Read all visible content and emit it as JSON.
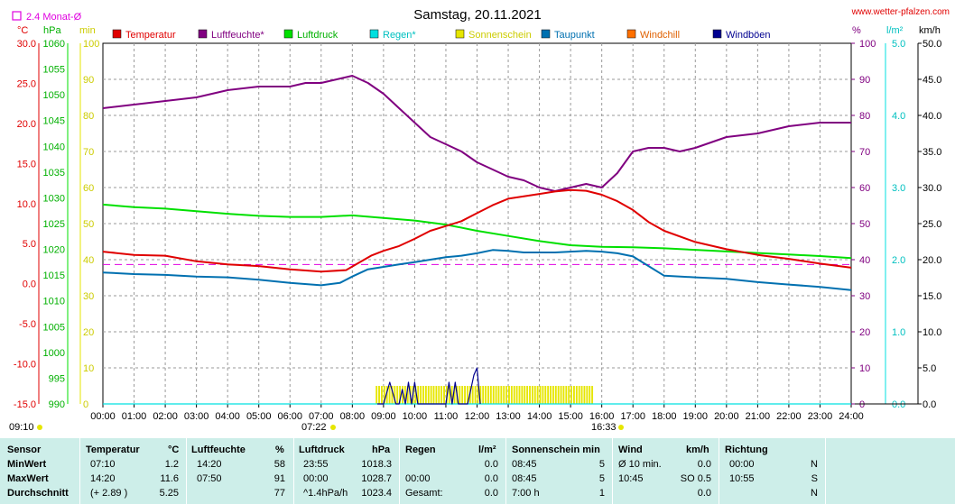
{
  "header": {
    "title": "Samstag, 20.11.2021",
    "site": "www.wetter-pfalzen.com",
    "avg_label": "2.4 Monat-Ø"
  },
  "units": {
    "temp": "°C",
    "hpa": "hPa",
    "min": "min",
    "pct": "%",
    "lm2": "l/m²",
    "kmh": "km/h"
  },
  "markers": {
    "left_time": "09:10",
    "sunrise": "07:22",
    "sunset": "16:33"
  },
  "colors": {
    "temperature": "#e00000",
    "humidity": "#800080",
    "pressure": "#00e000",
    "rain": "#00e0e0",
    "sunshine": "#e6e600",
    "dewpoint": "#0070b0",
    "windchill": "#ff7000",
    "gusts": "#000090",
    "average": "#e000e0",
    "table_bg": "#cdeee9"
  },
  "chart_data": {
    "type": "line",
    "title": "Samstag, 20.11.2021",
    "x_ticks": [
      "00:00",
      "01:00",
      "02:00",
      "03:00",
      "04:00",
      "05:00",
      "06:00",
      "07:00",
      "08:00",
      "09:00",
      "10:00",
      "11:00",
      "12:00",
      "13:00",
      "14:00",
      "15:00",
      "16:00",
      "17:00",
      "18:00",
      "19:00",
      "20:00",
      "21:00",
      "22:00",
      "23:00",
      "24:00"
    ],
    "xlim": [
      0,
      24
    ],
    "axes": {
      "temp": {
        "ylim": [
          -15,
          30
        ],
        "ticks": [
          "30.0",
          "25.0",
          "20.0",
          "15.0",
          "10.0",
          "5.0",
          "0.0",
          "-5.0",
          "-10.0",
          "-15.0"
        ]
      },
      "hpa": {
        "ylim": [
          990,
          1060
        ],
        "ticks": [
          "1060",
          "1055",
          "1050",
          "1045",
          "1040",
          "1035",
          "1030",
          "1025",
          "1020",
          "1015",
          "1010",
          "1005",
          "1000",
          "995",
          "990"
        ]
      },
      "min": {
        "ylim": [
          0,
          100
        ],
        "ticks": [
          "100",
          "90",
          "80",
          "70",
          "60",
          "50",
          "40",
          "30",
          "20",
          "10",
          "0"
        ]
      },
      "pct": {
        "ylim": [
          0,
          100
        ],
        "ticks": [
          "100",
          "90",
          "80",
          "70",
          "60",
          "50",
          "40",
          "30",
          "20",
          "10",
          "0"
        ]
      },
      "lm2": {
        "ylim": [
          0,
          5
        ],
        "ticks": [
          "5.0",
          "4.0",
          "3.0",
          "2.0",
          "1.0",
          "0.0"
        ]
      },
      "kmh": {
        "ylim": [
          0,
          50
        ],
        "ticks": [
          "50.0",
          "45.0",
          "40.0",
          "35.0",
          "30.0",
          "25.0",
          "20.0",
          "15.0",
          "10.0",
          "5.0",
          "0.0"
        ]
      }
    },
    "legend": [
      "Temperatur",
      "Luftfeuchte*",
      "Luftdruck",
      "Regen*",
      "Sonnenschein",
      "Taupunkt",
      "Windchill",
      "Windböen"
    ],
    "average_temp": 2.4,
    "series": [
      {
        "name": "Temperatur",
        "axis": "temp",
        "x": [
          0,
          1,
          2,
          3,
          4,
          5,
          6,
          7,
          7.8,
          8.2,
          8.6,
          9,
          9.5,
          10,
          10.5,
          11,
          11.5,
          12,
          12.5,
          13,
          13.5,
          14,
          14.5,
          15,
          15.5,
          16,
          16.5,
          17,
          17.5,
          18,
          19,
          20,
          21,
          22,
          23,
          24
        ],
        "y": [
          4.0,
          3.6,
          3.5,
          2.8,
          2.4,
          2.2,
          1.8,
          1.5,
          1.7,
          2.6,
          3.5,
          4.1,
          4.7,
          5.6,
          6.6,
          7.2,
          7.8,
          8.8,
          9.8,
          10.6,
          10.9,
          11.2,
          11.5,
          11.7,
          11.6,
          11.1,
          10.3,
          9.2,
          7.7,
          6.6,
          5.2,
          4.3,
          3.6,
          3.1,
          2.5,
          2.0
        ]
      },
      {
        "name": "Luftfeuchte*",
        "axis": "pct",
        "x": [
          0,
          1,
          2,
          3,
          4,
          5,
          6,
          6.5,
          7,
          7.5,
          8,
          8.5,
          9,
          9.5,
          10,
          10.5,
          11,
          11.5,
          12,
          12.5,
          13,
          13.5,
          14,
          14.5,
          15,
          15.5,
          16,
          16.5,
          17,
          17.5,
          18,
          18.5,
          19,
          20,
          21,
          22,
          23,
          24
        ],
        "y": [
          82,
          83,
          84,
          85,
          87,
          88,
          88,
          89,
          89,
          90,
          91,
          89,
          86,
          82,
          78,
          74,
          72,
          70,
          67,
          65,
          63,
          62,
          60,
          59,
          60,
          61,
          60,
          64,
          70,
          71,
          71,
          70,
          71,
          74,
          75,
          77,
          78,
          78
        ]
      },
      {
        "name": "Luftdruck",
        "axis": "hpa",
        "x": [
          0,
          1,
          2,
          3,
          4,
          5,
          6,
          7,
          8,
          9,
          10,
          11,
          12,
          13,
          14,
          15,
          16,
          17,
          18,
          19,
          20,
          21,
          22,
          23,
          24
        ],
        "y": [
          1028.7,
          1028.2,
          1027.9,
          1027.4,
          1026.9,
          1026.5,
          1026.3,
          1026.3,
          1026.6,
          1026.1,
          1025.6,
          1024.8,
          1023.6,
          1022.6,
          1021.6,
          1020.8,
          1020.5,
          1020.4,
          1020.2,
          1019.9,
          1019.6,
          1019.3,
          1019.0,
          1018.7,
          1018.3
        ]
      },
      {
        "name": "Taupunkt",
        "axis": "temp",
        "x": [
          0,
          1,
          2,
          3,
          4,
          5,
          6,
          7,
          7.6,
          8,
          8.5,
          9,
          9.5,
          10,
          10.5,
          11,
          11.5,
          12,
          12.5,
          13,
          13.5,
          14,
          14.5,
          15,
          15.5,
          16,
          16.5,
          17,
          17.5,
          18,
          19,
          20,
          21,
          22,
          23,
          24
        ],
        "y": [
          1.4,
          1.2,
          1.1,
          0.9,
          0.8,
          0.5,
          0.1,
          -0.2,
          0.1,
          0.9,
          1.8,
          2.1,
          2.4,
          2.7,
          3.0,
          3.3,
          3.5,
          3.8,
          4.2,
          4.1,
          3.9,
          3.9,
          3.9,
          4.0,
          4.1,
          4.0,
          3.8,
          3.4,
          2.2,
          1.0,
          0.8,
          0.6,
          0.2,
          -0.1,
          -0.4,
          -0.8
        ]
      },
      {
        "name": "Windböen",
        "axis": "kmh",
        "x": [
          8.8,
          9.0,
          9.2,
          9.4,
          9.5,
          9.6,
          9.7,
          9.8,
          9.9,
          10.0,
          10.1,
          10.2,
          10.3,
          10.5,
          10.6,
          10.7,
          10.8,
          10.9,
          11.0,
          11.1,
          11.2,
          11.3,
          11.4,
          11.5,
          11.7,
          11.8,
          11.9,
          12.0,
          12.1
        ],
        "y": [
          0,
          0,
          3,
          0,
          0,
          2,
          0,
          3,
          0,
          3,
          0,
          0,
          0,
          0,
          0,
          0,
          0,
          0,
          0,
          3,
          0,
          3,
          0,
          0,
          0,
          2,
          4,
          5,
          0
        ]
      },
      {
        "name": "Regen*",
        "axis": "lm2",
        "x": [
          0,
          24
        ],
        "y": [
          0,
          0
        ]
      }
    ],
    "sunshine_bars": {
      "axis": "min",
      "x_start": 8.75,
      "x_end": 15.7,
      "value": 5
    }
  },
  "table": {
    "headers": {
      "sensor": "Sensor",
      "temp": "Temperatur",
      "temp_unit": "°C",
      "hum": "Luftfeuchte",
      "hum_unit": "%",
      "press": "Luftdruck",
      "press_unit": "hPa",
      "rain": "Regen",
      "rain_unit": "l/m²",
      "sun": "Sonnenschein min",
      "wind": "Wind",
      "wind_unit": "km/h",
      "dir": "Richtung"
    },
    "rows": [
      {
        "label": "MinWert",
        "temp_time": "07:10",
        "temp_val": "1.2",
        "hum_time": "14:20",
        "hum_val": "58",
        "press_time": "23:55",
        "press_val": "1018.3",
        "rain_time": "",
        "rain_val": "0.0",
        "sun_time": "08:45",
        "sun_val": "5",
        "wind_time": "Ø 10 min.",
        "wind_val": "0.0",
        "dir_time": "00:00",
        "dir_val": "N"
      },
      {
        "label": "MaxWert",
        "temp_time": "14:20",
        "temp_val": "11.6",
        "hum_time": "07:50",
        "hum_val": "91",
        "press_time": "00:00",
        "press_val": "1028.7",
        "rain_time": "00:00",
        "rain_val": "0.0",
        "sun_time": "08:45",
        "sun_val": "5",
        "wind_time": "10:45",
        "wind_val": "SO 0.5",
        "dir_time": "10:55",
        "dir_val": "S"
      },
      {
        "label": "Durchschnitt",
        "temp_time": "(+ 2.89 )",
        "temp_val": "5.25",
        "hum_time": "",
        "hum_val": "77",
        "press_time": "^1.4hPa/h",
        "press_val": "1023.4",
        "rain_time": "Gesamt:",
        "rain_val": "0.0",
        "sun_time": "7:00 h",
        "sun_val": "1",
        "wind_time": "",
        "wind_val": "0.0",
        "dir_time": "",
        "dir_val": "N"
      }
    ]
  }
}
